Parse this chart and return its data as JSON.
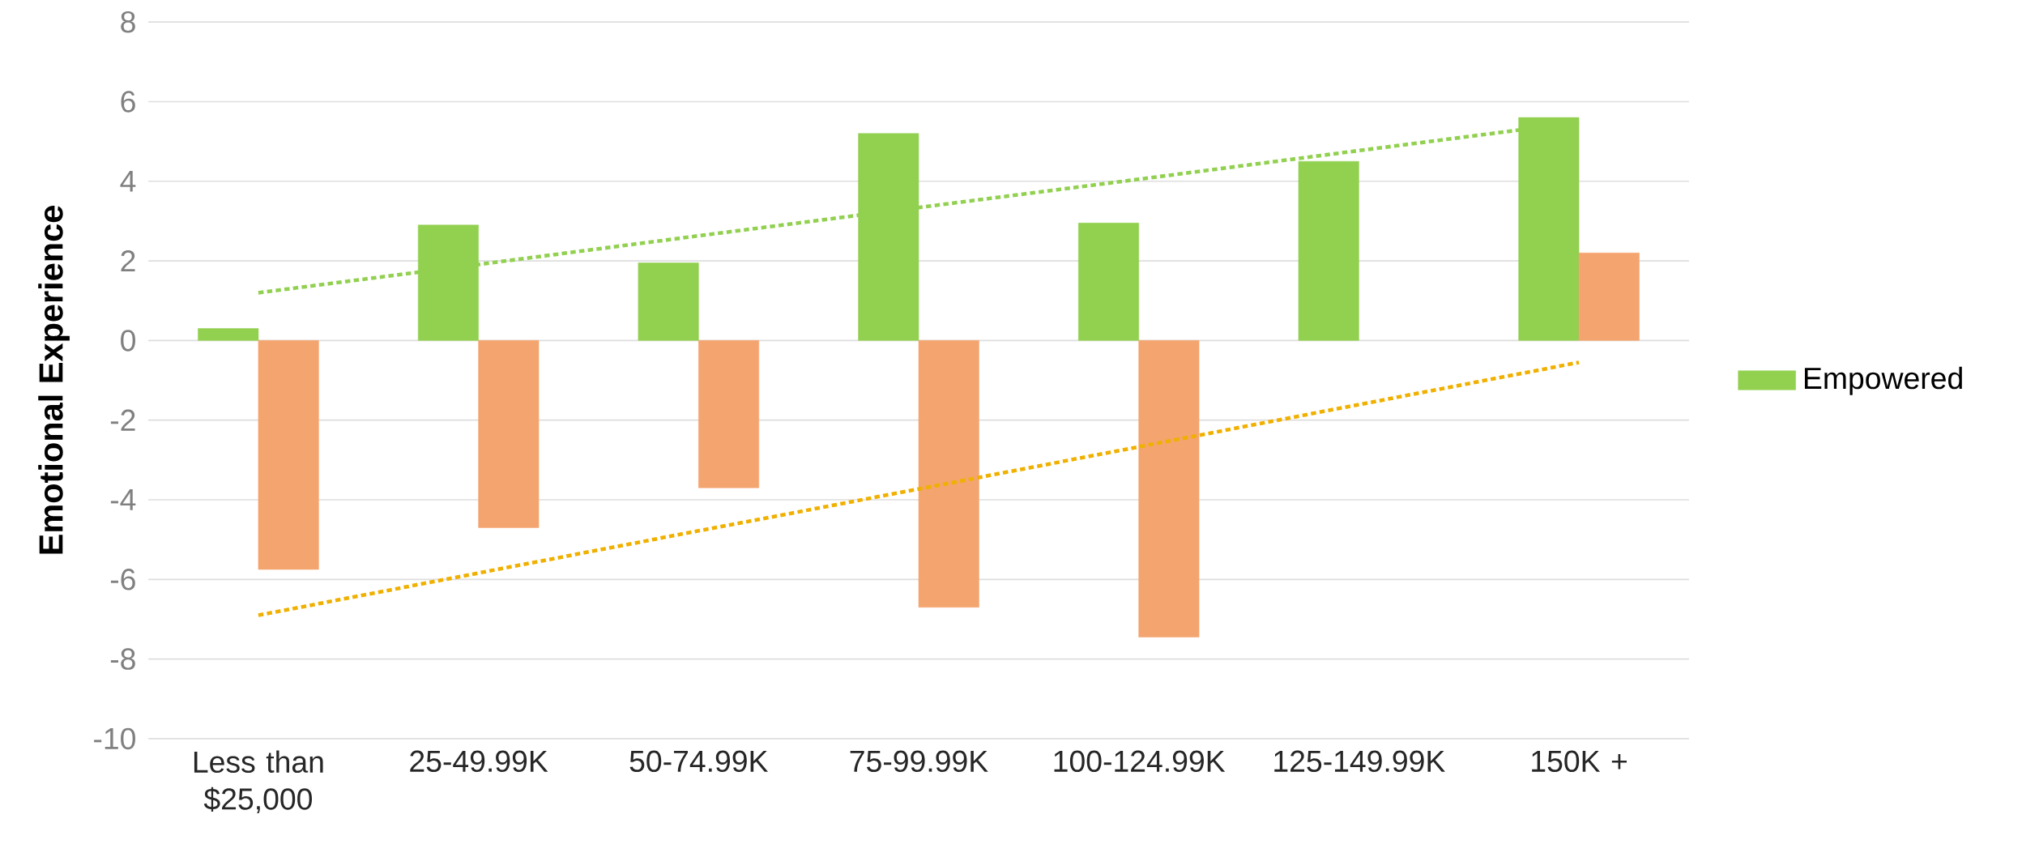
{
  "chart_data": {
    "type": "bar",
    "ylabel": "Emotional Experience",
    "categories": [
      "Less than $25,000",
      "25-49.99K",
      "50-74.99K",
      "75-99.99K",
      "100-124.99K",
      "125-149.99K",
      "150K +"
    ],
    "series": [
      {
        "name": "Empowered",
        "color": "#92d050",
        "values": [
          0.3,
          2.9,
          1.95,
          5.2,
          2.95,
          4.5,
          5.6
        ]
      },
      {
        "color": "#f4a46f",
        "values": [
          -5.75,
          -4.7,
          -3.7,
          -6.7,
          -7.45,
          null,
          2.2
        ]
      },
      {
        "type": "line",
        "color": "#92d050",
        "line_style": "dotted",
        "marker": "none",
        "values": [
          1.2,
          1.91,
          2.63,
          3.34,
          4.05,
          4.77,
          5.48
        ]
      },
      {
        "type": "line",
        "color": "#f0b000",
        "line_style": "dotted",
        "marker": "none",
        "values": [
          -6.9,
          -5.84,
          -4.78,
          -3.73,
          -2.67,
          -1.61,
          -0.55
        ]
      }
    ],
    "ylim": [
      -10,
      8
    ],
    "yticks": [
      -10,
      -8,
      -6,
      -4,
      -2,
      0,
      2,
      4,
      6,
      8
    ],
    "grid": "y",
    "legend": "right"
  }
}
